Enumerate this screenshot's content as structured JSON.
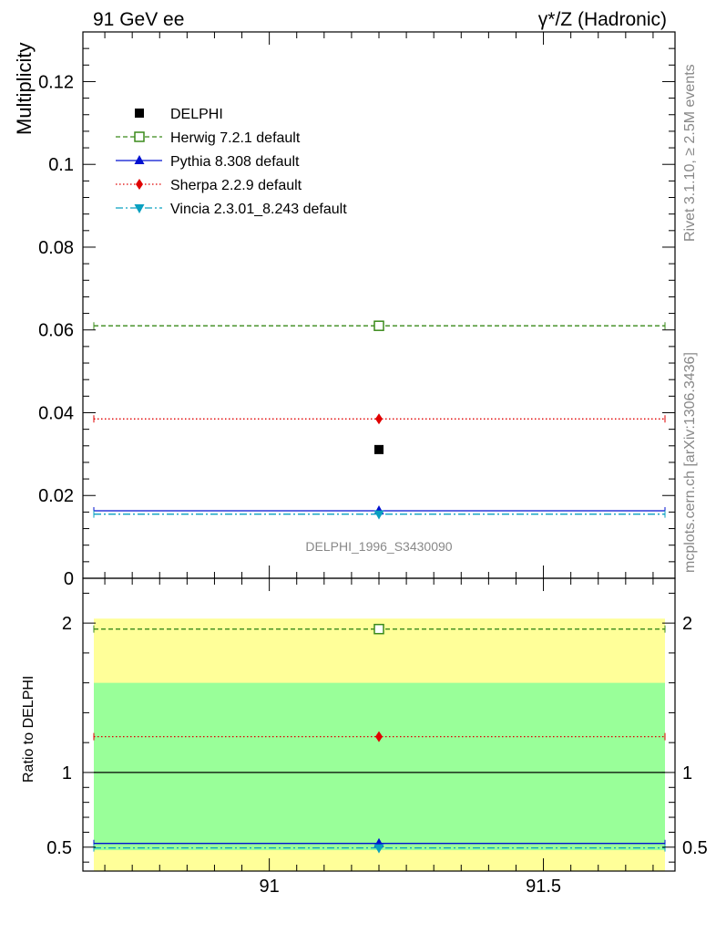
{
  "header": {
    "left": "91 GeV ee",
    "right_prefix": "γ*/Z (Hadronic)"
  },
  "side_labels": {
    "rivet": "Rivet 3.1.10, ≥ 2.5M events",
    "source": "mcplots.cern.ch [arXiv:1306.3436]"
  },
  "watermark": "DELPHI_1996_S3430090",
  "chart_data": [
    {
      "type": "scatter",
      "panel": "main",
      "ylabel": "Multiplicity",
      "xlim": [
        90.66,
        91.74
      ],
      "ylim": [
        0,
        0.132
      ],
      "y_ticks": [
        0,
        0.02,
        0.04,
        0.06,
        0.08,
        0.1,
        0.12
      ],
      "y_tick_labels": [
        "0",
        "0.02",
        "0.04",
        "0.06",
        "0.08",
        "0.1",
        "0.12"
      ],
      "legend_position": "top-left",
      "series": [
        {
          "name": "DELPHI",
          "x": [
            91.2
          ],
          "y": [
            0.0311
          ],
          "color": "#000000",
          "marker": "filled-square",
          "line": "none"
        },
        {
          "name": "Herwig 7.2.1 default",
          "x": [
            91.2
          ],
          "y": [
            0.061
          ],
          "color": "#3a8a1a",
          "marker": "open-square",
          "line": "dashed"
        },
        {
          "name": "Pythia 8.308 default",
          "x": [
            91.2
          ],
          "y": [
            0.0163
          ],
          "color": "#0010d0",
          "marker": "triangle-up",
          "line": "solid"
        },
        {
          "name": "Sherpa 2.2.9 default",
          "x": [
            91.2
          ],
          "y": [
            0.0385
          ],
          "color": "#e00000",
          "marker": "diamond",
          "line": "dotted"
        },
        {
          "name": "Vincia 2.3.01_8.243 default",
          "x": [
            91.2
          ],
          "y": [
            0.0155
          ],
          "color": "#0aa0c0",
          "marker": "triangle-down",
          "line": "dashdot"
        }
      ]
    },
    {
      "type": "scatter",
      "panel": "ratio",
      "ylabel": "Ratio to DELPHI",
      "xlim": [
        90.66,
        91.74
      ],
      "ylim": [
        0.34,
        2.3
      ],
      "x_ticks": [
        91,
        91.5
      ],
      "x_tick_labels": [
        "91",
        "91.5"
      ],
      "y_ticks": [
        0.5,
        1,
        2
      ],
      "y_tick_labels": [
        "0.5",
        "1",
        "2"
      ],
      "bands": [
        {
          "kind": "outer",
          "low": 0.34,
          "high": 2.03,
          "color": "#ffff99"
        },
        {
          "kind": "inner",
          "low": 0.48,
          "high": 1.6,
          "color": "#99ff99"
        }
      ],
      "series": [
        {
          "name": "DELPHI",
          "y": 1.0,
          "color": "#000000",
          "marker": "none",
          "line": "solid"
        },
        {
          "name": "Herwig 7.2.1 default",
          "y": 1.96,
          "color": "#3a8a1a",
          "marker": "open-square",
          "line": "dashed"
        },
        {
          "name": "Pythia 8.308 default",
          "y": 0.525,
          "color": "#0010d0",
          "marker": "triangle-up",
          "line": "solid"
        },
        {
          "name": "Sherpa 2.2.9 default",
          "y": 1.24,
          "color": "#e00000",
          "marker": "diamond",
          "line": "dotted"
        },
        {
          "name": "Vincia 2.3.01_8.243 default",
          "y": 0.495,
          "color": "#0aa0c0",
          "marker": "triangle-down",
          "line": "dashdot"
        }
      ]
    }
  ]
}
